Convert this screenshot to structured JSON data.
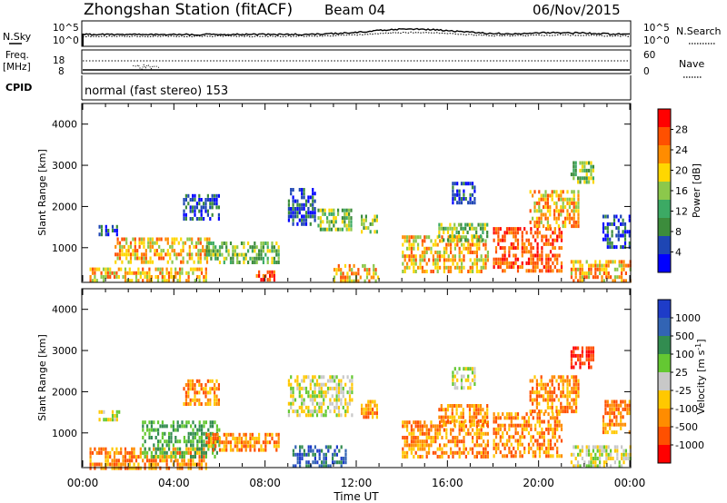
{
  "header": {
    "title": "Zhongshan Station (fitACF)",
    "beam": "Beam 04",
    "date": "06/Nov/2015",
    "cpid": "normal (fast stereo) 153"
  },
  "top_panels": {
    "nsky_label": "N.Sky",
    "nsky_ticks": [
      "10^5",
      "10^0"
    ],
    "nsearch_label": "N.Search",
    "nsearch_ticks": [
      "10^5",
      "10^0"
    ],
    "freq_label": "Freq.",
    "freq_unit": "[MHz]",
    "freq_ticks": [
      "18",
      "8"
    ],
    "nave_label": "Nave",
    "nave_ticks": [
      "60",
      "0"
    ],
    "cpid_label": "CPID"
  },
  "axes": {
    "ylabel": "Slant Range [km]",
    "xlabel": "Time UT",
    "yticks": [
      "4000",
      "3000",
      "2000",
      "1000"
    ],
    "xticks": [
      "00:00",
      "04:00",
      "08:00",
      "12:00",
      "16:00",
      "20:00",
      "00:00"
    ]
  },
  "colors": {
    "power": [
      "#0000ff",
      "#1e46b4",
      "#3c8c3c",
      "#3caa64",
      "#8cc84b",
      "#ffd700",
      "#ff8c00",
      "#ff5000",
      "#ff0000"
    ],
    "velocity": [
      "#ff0000",
      "#ff5000",
      "#ff8c00",
      "#ffc800",
      "#c8c8c8",
      "#64c832",
      "#328c50",
      "#3264b4",
      "#1e3cc8"
    ]
  },
  "chart_data": [
    {
      "type": "heatmap",
      "name": "power",
      "colorbar_label": "Power [dB]",
      "colorbar_ticks": [
        "28",
        "24",
        "20",
        "16",
        "12",
        "8",
        "4"
      ],
      "xlim_hours": [
        0,
        24
      ],
      "ylim_km": [
        180,
        4500
      ],
      "regions": [
        {
          "t": [
            0.3,
            5.4
          ],
          "r": [
            180,
            520
          ],
          "dom": "orange"
        },
        {
          "t": [
            1.4,
            5.6
          ],
          "r": [
            620,
            1250
          ],
          "dom": "orange"
        },
        {
          "t": [
            0.6,
            1.6
          ],
          "r": [
            1300,
            1550
          ],
          "dom": "blue"
        },
        {
          "t": [
            4.4,
            6.0
          ],
          "r": [
            1700,
            2300
          ],
          "dom": "blue"
        },
        {
          "t": [
            5.4,
            8.6
          ],
          "r": [
            600,
            1150
          ],
          "dom": "green"
        },
        {
          "t": [
            7.6,
            8.4
          ],
          "r": [
            180,
            450
          ],
          "dom": "red"
        },
        {
          "t": [
            9.0,
            10.2
          ],
          "r": [
            1550,
            2450
          ],
          "dom": "blue"
        },
        {
          "t": [
            10.3,
            11.8
          ],
          "r": [
            1450,
            1950
          ],
          "dom": "green"
        },
        {
          "t": [
            12.2,
            12.9
          ],
          "r": [
            1400,
            1800
          ],
          "dom": "green"
        },
        {
          "t": [
            11.0,
            13.0
          ],
          "r": [
            180,
            600
          ],
          "dom": "orange"
        },
        {
          "t": [
            14.0,
            17.8
          ],
          "r": [
            450,
            1300
          ],
          "dom": "orange"
        },
        {
          "t": [
            15.6,
            17.8
          ],
          "r": [
            1200,
            1600
          ],
          "dom": "green"
        },
        {
          "t": [
            16.2,
            17.2
          ],
          "r": [
            2100,
            2600
          ],
          "dom": "blue"
        },
        {
          "t": [
            18.0,
            21.0
          ],
          "r": [
            450,
            1500
          ],
          "dom": "red"
        },
        {
          "t": [
            19.6,
            21.8
          ],
          "r": [
            1500,
            2400
          ],
          "dom": "orange"
        },
        {
          "t": [
            21.4,
            22.4
          ],
          "r": [
            2600,
            3100
          ],
          "dom": "green"
        },
        {
          "t": [
            21.4,
            24.0
          ],
          "r": [
            180,
            700
          ],
          "dom": "orange"
        },
        {
          "t": [
            22.8,
            24.0
          ],
          "r": [
            1000,
            1800
          ],
          "dom": "blue"
        }
      ]
    },
    {
      "type": "heatmap",
      "name": "velocity",
      "colorbar_label": "Velocity [m s^-1]",
      "colorbar_ticks": [
        "1000",
        "500",
        "100",
        "25",
        "-25",
        "-100",
        "-500",
        "-1000"
      ],
      "xlim_hours": [
        0,
        24
      ],
      "ylim_km": [
        180,
        4500
      ],
      "regions": [
        {
          "t": [
            0.3,
            5.4
          ],
          "r": [
            180,
            650
          ],
          "dom": "orange"
        },
        {
          "t": [
            2.6,
            6.0
          ],
          "r": [
            400,
            1300
          ],
          "dom": "green"
        },
        {
          "t": [
            0.6,
            1.6
          ],
          "r": [
            1300,
            1550
          ],
          "dom": "grey"
        },
        {
          "t": [
            4.4,
            6.0
          ],
          "r": [
            1700,
            2300
          ],
          "dom": "orange"
        },
        {
          "t": [
            5.4,
            8.6
          ],
          "r": [
            600,
            1000
          ],
          "dom": "orange"
        },
        {
          "t": [
            9.0,
            11.8
          ],
          "r": [
            1450,
            2400
          ],
          "dom": "grey"
        },
        {
          "t": [
            9.2,
            11.5
          ],
          "r": [
            180,
            700
          ],
          "dom": "blue"
        },
        {
          "t": [
            12.2,
            12.9
          ],
          "r": [
            1400,
            1800
          ],
          "dom": "orange"
        },
        {
          "t": [
            14.0,
            17.8
          ],
          "r": [
            450,
            1300
          ],
          "dom": "orange"
        },
        {
          "t": [
            15.6,
            17.8
          ],
          "r": [
            1200,
            1700
          ],
          "dom": "orange"
        },
        {
          "t": [
            16.2,
            17.2
          ],
          "r": [
            2100,
            2600
          ],
          "dom": "grey"
        },
        {
          "t": [
            18.0,
            21.0
          ],
          "r": [
            450,
            1500
          ],
          "dom": "orange"
        },
        {
          "t": [
            19.6,
            21.8
          ],
          "r": [
            1500,
            2400
          ],
          "dom": "orange"
        },
        {
          "t": [
            21.4,
            22.4
          ],
          "r": [
            2600,
            3100
          ],
          "dom": "red"
        },
        {
          "t": [
            21.4,
            24.0
          ],
          "r": [
            180,
            700
          ],
          "dom": "grey"
        },
        {
          "t": [
            22.8,
            24.0
          ],
          "r": [
            1000,
            1800
          ],
          "dom": "orange"
        }
      ]
    }
  ]
}
